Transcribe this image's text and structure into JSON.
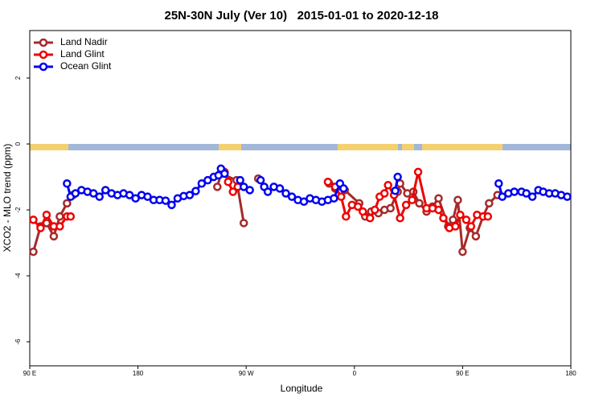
{
  "chart_data": {
    "type": "line",
    "title": "25N-30N July (Ver 10)   2015-01-01 to 2020-12-18",
    "x_label": "Longitude",
    "y_label": "XCO2 - MLO trend (ppm)",
    "xlim": [
      90,
      540
    ],
    "xticks": [
      {
        "value": 90,
        "label": "90 E"
      },
      180,
      {
        "value": 270,
        "label": "90 W"
      },
      {
        "value": 360,
        "label": "0"
      },
      {
        "value": 450,
        "label": "90 E"
      },
      {
        "value": 540,
        "label": "180"
      }
    ],
    "ylim": [
      -6.73,
      3.44
    ],
    "yticks": [
      2,
      0,
      -2,
      -4,
      -6
    ],
    "legend": "top-left",
    "series": [
      {
        "name": "Land Nadir",
        "color": "#a52a2a",
        "x": [
          93,
          99,
          104,
          110,
          115,
          121,
          126,
          null,
          246,
          249,
          262,
          268,
          null,
          280,
          null,
          339,
          344,
          352,
          364,
          369,
          374,
          380,
          385,
          390,
          396,
          398,
          404,
          409,
          414,
          420,
          425,
          430,
          438,
          442,
          446,
          450,
          456,
          461,
          467,
          472,
          479
        ],
        "values": [
          -3.27,
          -2.5,
          -2.4,
          -2.8,
          -2.2,
          -1.8,
          -1.55,
          null,
          -1.3,
          -0.9,
          -1.1,
          -2.4,
          null,
          -1.05,
          null,
          -1.2,
          -1.35,
          -1.4,
          -1.8,
          -2.2,
          -2.05,
          -2.1,
          -2.0,
          -1.95,
          -1.45,
          -1.2,
          -1.5,
          -1.45,
          -1.8,
          -2.05,
          -1.9,
          -1.65,
          -2.5,
          -2.3,
          -1.7,
          -3.27,
          -2.55,
          -2.8,
          -2.2,
          -1.8,
          -1.55
        ]
      },
      {
        "name": "Land Glint",
        "color": "#ee0000",
        "x": [
          93,
          99,
          104,
          110,
          115,
          121,
          124,
          null,
          252,
          255,
          259,
          263,
          null,
          338,
          344,
          349,
          353,
          358,
          363,
          367,
          373,
          377,
          381,
          385,
          388,
          393,
          398,
          403,
          408,
          413,
          420,
          425,
          430,
          434,
          439,
          444,
          448,
          453,
          457,
          462,
          467,
          471
        ],
        "values": [
          -2.3,
          -2.55,
          -2.15,
          -2.5,
          -2.5,
          -2.2,
          -2.2,
          null,
          -0.85,
          -1.15,
          -1.45,
          -1.3,
          null,
          -1.15,
          -1.3,
          -1.6,
          -2.2,
          -1.85,
          -1.9,
          -2.05,
          -2.25,
          -2.0,
          -1.6,
          -1.5,
          -1.25,
          -1.55,
          -2.25,
          -1.85,
          -1.7,
          -0.85,
          -1.95,
          -1.95,
          -2.0,
          -2.25,
          -2.55,
          -2.5,
          -2.15,
          -2.3,
          -2.5,
          -2.15,
          -2.2,
          -2.2
        ]
      },
      {
        "name": "Ocean Glint",
        "color": "#0000ee",
        "x": [
          121,
          124,
          128,
          133,
          138,
          143,
          148,
          153,
          158,
          163,
          168,
          173,
          178,
          183,
          188,
          193,
          198,
          203,
          208,
          213,
          218,
          223,
          228,
          233,
          238,
          243,
          247,
          249,
          252,
          null,
          265,
          268,
          273,
          null,
          282,
          285,
          288,
          293,
          298,
          303,
          308,
          313,
          318,
          323,
          328,
          333,
          338,
          343,
          348,
          351,
          null,
          394,
          396,
          null,
          480,
          483,
          488,
          493,
          499,
          503,
          508,
          513,
          517,
          522,
          527,
          532,
          537
        ],
        "values": [
          -1.2,
          -1.6,
          -1.5,
          -1.4,
          -1.45,
          -1.5,
          -1.6,
          -1.4,
          -1.5,
          -1.55,
          -1.5,
          -1.55,
          -1.65,
          -1.55,
          -1.6,
          -1.7,
          -1.7,
          -1.72,
          -1.85,
          -1.65,
          -1.58,
          -1.55,
          -1.43,
          -1.2,
          -1.1,
          -1.0,
          -0.95,
          -0.75,
          -0.9,
          null,
          -1.1,
          -1.3,
          -1.4,
          null,
          -1.1,
          -1.3,
          -1.45,
          -1.3,
          -1.35,
          -1.5,
          -1.6,
          -1.7,
          -1.75,
          -1.65,
          -1.7,
          -1.75,
          -1.7,
          -1.65,
          -1.2,
          -1.35,
          null,
          -1.42,
          -1.0,
          null,
          -1.2,
          -1.6,
          -1.5,
          -1.45,
          -1.45,
          -1.5,
          -1.6,
          -1.4,
          -1.45,
          -1.5,
          -1.5,
          -1.55,
          -1.6
        ]
      }
    ]
  }
}
